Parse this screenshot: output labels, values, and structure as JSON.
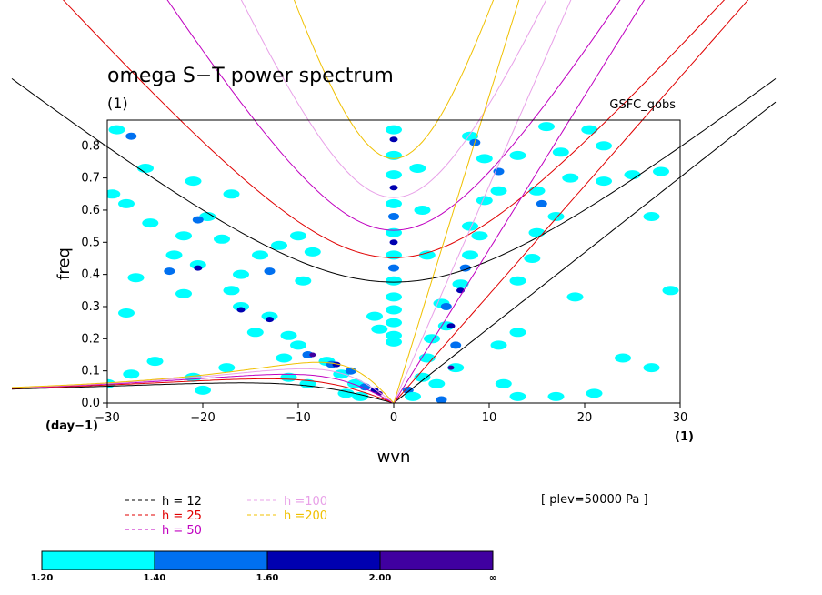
{
  "chart_data": {
    "type": "contour",
    "title": "omega S−T power spectrum",
    "subtitle": "(1)",
    "source_label": "GSFC_qobs",
    "level_label": "[ plev=50000 Pa ]",
    "xlabel": "wvn",
    "ylabel": "freq",
    "x_unit": "(1)",
    "y_unit": "(day−1)",
    "xlim": [
      -30,
      30
    ],
    "ylim": [
      0,
      0.88
    ],
    "xticks": [
      -30,
      -20,
      -10,
      0,
      10,
      20,
      30
    ],
    "xtick_labels": [
      "−30",
      "−20",
      "−10",
      "0",
      "10",
      "20",
      "30"
    ],
    "yticks": [
      0,
      0.1,
      0.2,
      0.3,
      0.4,
      0.5,
      0.6,
      0.7,
      0.8
    ],
    "ytick_labels": [
      "0.0",
      "0.1",
      "0.2",
      "0.3",
      "0.4",
      "0.5",
      "0.6",
      "0.7",
      "0.8"
    ],
    "dispersion_legend": [
      {
        "label": "h = 12",
        "h": 12,
        "color": "#000000"
      },
      {
        "label": "h = 25",
        "h": 25,
        "color": "#e00000"
      },
      {
        "label": "h = 50",
        "h": 50,
        "color": "#c000c0"
      },
      {
        "label": "h =100",
        "h": 100,
        "color": "#e8a0e8"
      },
      {
        "label": "h =200",
        "h": 200,
        "color": "#f0c000"
      }
    ],
    "colorbar": {
      "levels": [
        "1.20",
        "1.40",
        "1.60",
        "2.00",
        "∞"
      ],
      "colors": [
        "#00ffff",
        "#0070f0",
        "#0000b0",
        "#4000a0"
      ]
    },
    "blobs": [
      {
        "x": -29,
        "y": 0.85,
        "level": 0
      },
      {
        "x": -27.5,
        "y": 0.83,
        "level": 1
      },
      {
        "x": -29.5,
        "y": 0.65,
        "level": 0
      },
      {
        "x": -28,
        "y": 0.62,
        "level": 0
      },
      {
        "x": -26,
        "y": 0.73,
        "level": 0
      },
      {
        "x": -25.5,
        "y": 0.56,
        "level": 0
      },
      {
        "x": -21,
        "y": 0.69,
        "level": 0
      },
      {
        "x": -19.5,
        "y": 0.58,
        "level": 0
      },
      {
        "x": -20.5,
        "y": 0.57,
        "level": 1
      },
      {
        "x": -22,
        "y": 0.52,
        "level": 0
      },
      {
        "x": -17,
        "y": 0.65,
        "level": 0
      },
      {
        "x": -18,
        "y": 0.51,
        "level": 0
      },
      {
        "x": -23,
        "y": 0.46,
        "level": 0
      },
      {
        "x": -20.5,
        "y": 0.43,
        "level": 0
      },
      {
        "x": -20.5,
        "y": 0.42,
        "level": 2
      },
      {
        "x": -23.5,
        "y": 0.41,
        "level": 1
      },
      {
        "x": -16,
        "y": 0.4,
        "level": 0
      },
      {
        "x": -14,
        "y": 0.46,
        "level": 0
      },
      {
        "x": -12,
        "y": 0.49,
        "level": 0
      },
      {
        "x": -13,
        "y": 0.41,
        "level": 1
      },
      {
        "x": -10,
        "y": 0.52,
        "level": 0
      },
      {
        "x": -8.5,
        "y": 0.47,
        "level": 0
      },
      {
        "x": -9.5,
        "y": 0.38,
        "level": 0
      },
      {
        "x": -27,
        "y": 0.39,
        "level": 0
      },
      {
        "x": -28,
        "y": 0.28,
        "level": 0
      },
      {
        "x": -22,
        "y": 0.34,
        "level": 0
      },
      {
        "x": -17,
        "y": 0.35,
        "level": 0
      },
      {
        "x": -16,
        "y": 0.3,
        "level": 0
      },
      {
        "x": -16,
        "y": 0.29,
        "level": 2
      },
      {
        "x": -13,
        "y": 0.27,
        "level": 0
      },
      {
        "x": -13,
        "y": 0.26,
        "level": 2
      },
      {
        "x": -14.5,
        "y": 0.22,
        "level": 0
      },
      {
        "x": -11,
        "y": 0.21,
        "level": 0
      },
      {
        "x": -10,
        "y": 0.18,
        "level": 0
      },
      {
        "x": -11.5,
        "y": 0.14,
        "level": 0
      },
      {
        "x": -9,
        "y": 0.15,
        "level": 1
      },
      {
        "x": -8.5,
        "y": 0.15,
        "level": 3
      },
      {
        "x": -7,
        "y": 0.13,
        "level": 0
      },
      {
        "x": -6.5,
        "y": 0.12,
        "level": 1
      },
      {
        "x": -6,
        "y": 0.12,
        "level": 2
      },
      {
        "x": -5.5,
        "y": 0.09,
        "level": 0
      },
      {
        "x": -4.5,
        "y": 0.1,
        "level": 1
      },
      {
        "x": -4,
        "y": 0.06,
        "level": 0
      },
      {
        "x": -3,
        "y": 0.05,
        "level": 1
      },
      {
        "x": -2,
        "y": 0.04,
        "level": 2
      },
      {
        "x": -1.5,
        "y": 0.03,
        "level": 3
      },
      {
        "x": -3.5,
        "y": 0.02,
        "level": 0
      },
      {
        "x": -5,
        "y": 0.03,
        "level": 0
      },
      {
        "x": -9,
        "y": 0.06,
        "level": 0
      },
      {
        "x": -11,
        "y": 0.08,
        "level": 0
      },
      {
        "x": -17.5,
        "y": 0.11,
        "level": 0
      },
      {
        "x": -21,
        "y": 0.08,
        "level": 0
      },
      {
        "x": -25,
        "y": 0.13,
        "level": 0
      },
      {
        "x": -27.5,
        "y": 0.09,
        "level": 0
      },
      {
        "x": -30,
        "y": 0.06,
        "level": 0
      },
      {
        "x": -20,
        "y": 0.04,
        "level": 0
      },
      {
        "x": -2,
        "y": 0.27,
        "level": 0
      },
      {
        "x": -1.5,
        "y": 0.23,
        "level": 0
      },
      {
        "x": 0,
        "y": 0.85,
        "level": 0
      },
      {
        "x": 0,
        "y": 0.82,
        "level": 2
      },
      {
        "x": 0,
        "y": 0.77,
        "level": 0
      },
      {
        "x": 0,
        "y": 0.71,
        "level": 0
      },
      {
        "x": 0,
        "y": 0.67,
        "level": 2
      },
      {
        "x": 0,
        "y": 0.62,
        "level": 0
      },
      {
        "x": 0,
        "y": 0.58,
        "level": 1
      },
      {
        "x": 0,
        "y": 0.53,
        "level": 0
      },
      {
        "x": 0,
        "y": 0.5,
        "level": 2
      },
      {
        "x": 0,
        "y": 0.46,
        "level": 0
      },
      {
        "x": 0,
        "y": 0.42,
        "level": 1
      },
      {
        "x": 0,
        "y": 0.38,
        "level": 0
      },
      {
        "x": 0,
        "y": 0.33,
        "level": 0
      },
      {
        "x": 0,
        "y": 0.29,
        "level": 0
      },
      {
        "x": 0,
        "y": 0.25,
        "level": 0
      },
      {
        "x": 0,
        "y": 0.21,
        "level": 0
      },
      {
        "x": 0,
        "y": 0.19,
        "level": 0
      },
      {
        "x": 3,
        "y": 0.08,
        "level": 0
      },
      {
        "x": 3.5,
        "y": 0.14,
        "level": 0
      },
      {
        "x": 4,
        "y": 0.2,
        "level": 0
      },
      {
        "x": 5,
        "y": 0.31,
        "level": 0
      },
      {
        "x": 5.5,
        "y": 0.3,
        "level": 1
      },
      {
        "x": 5.5,
        "y": 0.24,
        "level": 0
      },
      {
        "x": 6,
        "y": 0.24,
        "level": 2
      },
      {
        "x": 6.5,
        "y": 0.18,
        "level": 1
      },
      {
        "x": 7,
        "y": 0.37,
        "level": 0
      },
      {
        "x": 7,
        "y": 0.35,
        "level": 2
      },
      {
        "x": 7.5,
        "y": 0.42,
        "level": 1
      },
      {
        "x": 8,
        "y": 0.46,
        "level": 0
      },
      {
        "x": 8,
        "y": 0.55,
        "level": 0
      },
      {
        "x": 9,
        "y": 0.52,
        "level": 0
      },
      {
        "x": 9.5,
        "y": 0.63,
        "level": 0
      },
      {
        "x": 11,
        "y": 0.66,
        "level": 0
      },
      {
        "x": 11,
        "y": 0.72,
        "level": 1
      },
      {
        "x": 9.5,
        "y": 0.76,
        "level": 0
      },
      {
        "x": 8,
        "y": 0.83,
        "level": 0
      },
      {
        "x": 8.5,
        "y": 0.81,
        "level": 1
      },
      {
        "x": 6.5,
        "y": 0.11,
        "level": 0
      },
      {
        "x": 6,
        "y": 0.11,
        "level": 3
      },
      {
        "x": 4.5,
        "y": 0.06,
        "level": 0
      },
      {
        "x": 5,
        "y": 0.01,
        "level": 1
      },
      {
        "x": 1.5,
        "y": 0.04,
        "level": 1
      },
      {
        "x": 2,
        "y": 0.02,
        "level": 0
      },
      {
        "x": 13,
        "y": 0.38,
        "level": 0
      },
      {
        "x": 14.5,
        "y": 0.45,
        "level": 0
      },
      {
        "x": 15,
        "y": 0.66,
        "level": 0
      },
      {
        "x": 15.5,
        "y": 0.62,
        "level": 1
      },
      {
        "x": 17,
        "y": 0.58,
        "level": 0
      },
      {
        "x": 18.5,
        "y": 0.7,
        "level": 0
      },
      {
        "x": 17.5,
        "y": 0.78,
        "level": 0
      },
      {
        "x": 16,
        "y": 0.86,
        "level": 0
      },
      {
        "x": 20.5,
        "y": 0.85,
        "level": 0
      },
      {
        "x": 22,
        "y": 0.69,
        "level": 0
      },
      {
        "x": 22,
        "y": 0.8,
        "level": 0
      },
      {
        "x": 25,
        "y": 0.71,
        "level": 0
      },
      {
        "x": 28,
        "y": 0.72,
        "level": 0
      },
      {
        "x": 27,
        "y": 0.58,
        "level": 0
      },
      {
        "x": 29,
        "y": 0.35,
        "level": 0
      },
      {
        "x": 27,
        "y": 0.11,
        "level": 0
      },
      {
        "x": 24,
        "y": 0.14,
        "level": 0
      },
      {
        "x": 13,
        "y": 0.02,
        "level": 0
      },
      {
        "x": 17,
        "y": 0.02,
        "level": 0
      },
      {
        "x": 21,
        "y": 0.03,
        "level": 0
      },
      {
        "x": 11.5,
        "y": 0.06,
        "level": 0
      },
      {
        "x": 13,
        "y": 0.77,
        "level": 0
      },
      {
        "x": 15,
        "y": 0.53,
        "level": 0
      },
      {
        "x": 13,
        "y": 0.22,
        "level": 0
      },
      {
        "x": 11,
        "y": 0.18,
        "level": 0
      },
      {
        "x": 19,
        "y": 0.33,
        "level": 0
      },
      {
        "x": 3,
        "y": 0.6,
        "level": 0
      },
      {
        "x": 2.5,
        "y": 0.73,
        "level": 0
      },
      {
        "x": 3.5,
        "y": 0.46,
        "level": 0
      }
    ]
  }
}
